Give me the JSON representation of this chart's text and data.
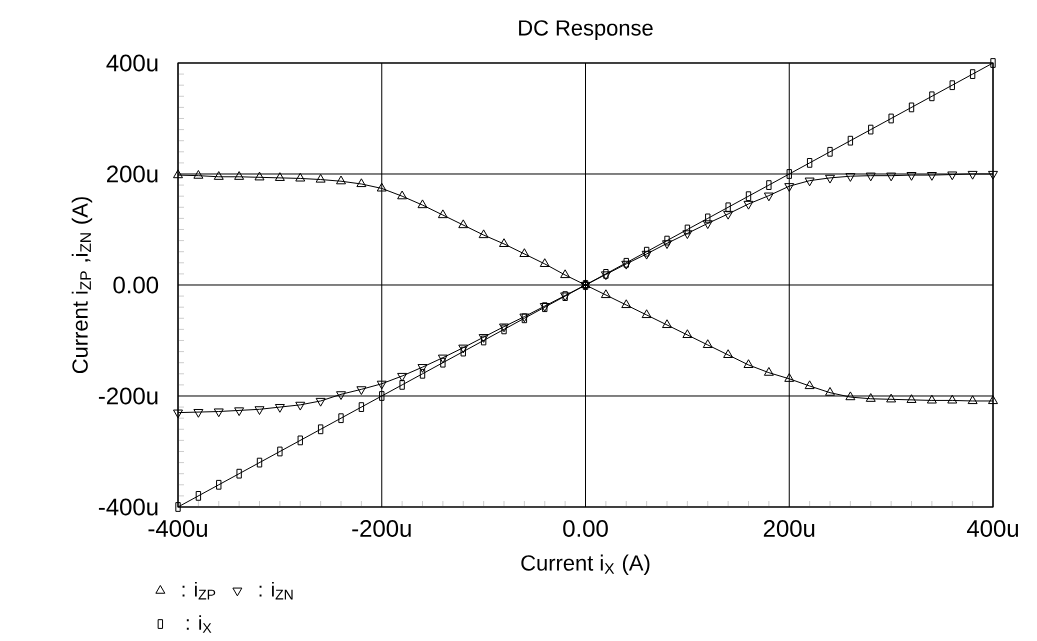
{
  "chart_data": {
    "type": "line",
    "title": "DC Response",
    "xlabel": "Current i$_{X}$ (A)",
    "ylabel": "Current i$_{ZP}$ ,i$_{ZN}$ (A)",
    "x": [
      -400,
      -380,
      -360,
      -340,
      -320,
      -300,
      -280,
      -260,
      -240,
      -220,
      -200,
      -180,
      -160,
      -140,
      -120,
      -100,
      -80,
      -60,
      -40,
      -20,
      0,
      20,
      40,
      60,
      80,
      100,
      120,
      140,
      160,
      180,
      200,
      220,
      240,
      260,
      280,
      300,
      320,
      340,
      360,
      380,
      400
    ],
    "series": [
      {
        "name": ": i$_{ZP}$",
        "color": "#000000",
        "marker": "triangle",
        "values": [
          198,
          197,
          195,
          195,
          194,
          193,
          192,
          190,
          187,
          182,
          174,
          160,
          144,
          126,
          108,
          90,
          74,
          56,
          38,
          18,
          0,
          -18,
          -36,
          -54,
          -72,
          -90,
          -108,
          -126,
          -144,
          -158,
          -169,
          -182,
          -194,
          -202,
          -205,
          -206,
          -207,
          -208,
          -208,
          -209,
          -209
        ]
      },
      {
        "name": ": i$_{ZN}$",
        "color": "#000000",
        "marker": "triangle-down",
        "values": [
          -230,
          -229,
          -228,
          -226,
          -224,
          -220,
          -216,
          -209,
          -197,
          -188,
          -178,
          -164,
          -148,
          -131,
          -113,
          -94,
          -75,
          -57,
          -38,
          -19,
          0,
          19,
          38,
          56,
          75,
          93,
          111,
          128,
          146,
          161,
          178,
          188,
          193,
          196,
          197,
          197,
          198,
          198,
          199,
          200,
          200
        ]
      },
      {
        "name": ": i$_{X}$",
        "color": "#000000",
        "marker": "square",
        "values": [
          -400,
          -380,
          -360,
          -340,
          -320,
          -300,
          -280,
          -260,
          -240,
          -220,
          -200,
          -180,
          -160,
          -140,
          -120,
          -100,
          -80,
          -60,
          -40,
          -20,
          0,
          20,
          40,
          60,
          80,
          100,
          120,
          140,
          160,
          180,
          200,
          220,
          240,
          260,
          280,
          300,
          320,
          340,
          360,
          380,
          400
        ]
      }
    ],
    "xlim": [
      -400,
      400
    ],
    "ylim": [
      -400,
      400
    ],
    "xticks": [
      {
        "value": -400,
        "label": "-400u"
      },
      {
        "value": -200,
        "label": "-200u"
      },
      {
        "value": 0,
        "label": "0.00"
      },
      {
        "value": 200,
        "label": "200u"
      },
      {
        "value": 400,
        "label": "400u"
      }
    ],
    "yticks": [
      {
        "value": -400,
        "label": "-400u"
      },
      {
        "value": -200,
        "label": "-200u"
      },
      {
        "value": 0,
        "label": "0.00"
      },
      {
        "value": 200,
        "label": "200u"
      },
      {
        "value": 400,
        "label": "400u"
      }
    ],
    "grid": true,
    "legend": "bottom left",
    "line_style": "solid"
  }
}
